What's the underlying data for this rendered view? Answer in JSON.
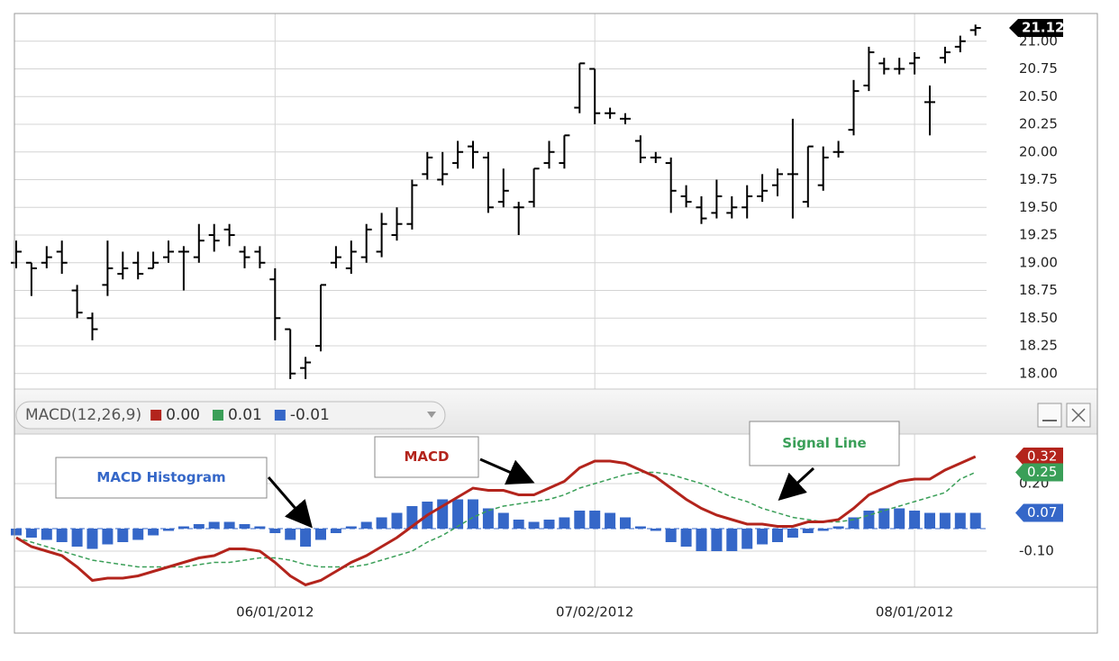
{
  "chart_data": [
    {
      "type": "ohlc",
      "color": "#000000",
      "grid": true,
      "ylim": [
        17.86,
        21.25
      ],
      "yticks": [
        {
          "value": 18,
          "label": "18.00"
        },
        {
          "value": 18.25,
          "label": "18.25"
        },
        {
          "value": 18.5,
          "label": "18.50"
        },
        {
          "value": 18.75,
          "label": "18.75"
        },
        {
          "value": 19,
          "label": "19.00"
        },
        {
          "value": 19.25,
          "label": "19.25"
        },
        {
          "value": 19.5,
          "label": "19.50"
        },
        {
          "value": 19.75,
          "label": "19.75"
        },
        {
          "value": 20,
          "label": "20.00"
        },
        {
          "value": 20.25,
          "label": "20.25"
        },
        {
          "value": 20.5,
          "label": "20.50"
        },
        {
          "value": 20.75,
          "label": "20.75"
        },
        {
          "value": 21,
          "label": "21.00"
        }
      ],
      "open": [
        19.0,
        19.0,
        19.0,
        19.1,
        18.75,
        18.5,
        18.8,
        18.9,
        19.0,
        18.95,
        19.05,
        19.1,
        19.05,
        19.25,
        19.3,
        19.1,
        19.1,
        18.85,
        18.4,
        18.05,
        18.25,
        19.0,
        18.95,
        19.05,
        19.1,
        19.25,
        19.35,
        19.8,
        19.75,
        19.9,
        20.05,
        19.95,
        19.55,
        19.5,
        19.55,
        19.9,
        19.9,
        20.4,
        20.75,
        20.35,
        20.3,
        20.1,
        19.95,
        19.9,
        19.6,
        19.5,
        19.45,
        19.45,
        19.5,
        19.6,
        19.7,
        19.8,
        19.55,
        19.7,
        20.0,
        20.2,
        20.6,
        20.8,
        20.75,
        20.8,
        20.45,
        20.85,
        20.95,
        21.1
      ],
      "high": [
        19.2,
        19.0,
        19.15,
        19.2,
        18.8,
        18.55,
        19.2,
        19.1,
        19.1,
        19.1,
        19.2,
        19.15,
        19.35,
        19.35,
        19.35,
        19.15,
        19.15,
        18.95,
        18.4,
        18.15,
        18.8,
        19.15,
        19.2,
        19.35,
        19.45,
        19.5,
        19.75,
        20.0,
        20.0,
        20.1,
        20.1,
        20.0,
        19.85,
        19.55,
        19.85,
        20.1,
        20.15,
        20.8,
        20.75,
        20.4,
        20.35,
        20.15,
        20.0,
        19.95,
        19.7,
        19.6,
        19.75,
        19.6,
        19.7,
        19.8,
        19.85,
        20.3,
        20.05,
        20.05,
        20.1,
        20.65,
        20.95,
        20.85,
        20.85,
        20.9,
        20.6,
        20.95,
        21.05,
        21.15
      ],
      "low": [
        18.95,
        18.7,
        18.95,
        18.9,
        18.5,
        18.3,
        18.7,
        18.85,
        18.85,
        18.95,
        19.0,
        18.75,
        19.0,
        19.1,
        19.15,
        18.95,
        18.95,
        18.3,
        17.95,
        17.95,
        18.2,
        18.95,
        18.9,
        19.0,
        19.05,
        19.2,
        19.3,
        19.75,
        19.7,
        19.85,
        19.85,
        19.45,
        19.5,
        19.25,
        19.5,
        19.85,
        19.85,
        20.35,
        20.25,
        20.3,
        20.25,
        19.9,
        19.9,
        19.45,
        19.5,
        19.35,
        19.4,
        19.4,
        19.4,
        19.55,
        19.6,
        19.4,
        19.5,
        19.65,
        19.95,
        20.15,
        20.55,
        20.7,
        20.7,
        20.7,
        20.15,
        20.8,
        20.9,
        21.05
      ],
      "close": [
        19.1,
        18.95,
        19.05,
        19.0,
        18.55,
        18.4,
        18.95,
        18.95,
        18.9,
        19.0,
        19.1,
        19.1,
        19.2,
        19.2,
        19.25,
        19.05,
        19.0,
        18.5,
        18.0,
        18.1,
        18.8,
        19.05,
        19.1,
        19.3,
        19.35,
        19.35,
        19.7,
        19.95,
        19.8,
        20.0,
        20.0,
        19.5,
        19.65,
        19.5,
        19.85,
        20.0,
        20.15,
        20.8,
        20.35,
        20.35,
        20.3,
        19.95,
        19.95,
        19.65,
        19.55,
        19.4,
        19.6,
        19.5,
        19.6,
        19.65,
        19.8,
        19.8,
        20.05,
        19.95,
        20.0,
        20.55,
        20.9,
        20.75,
        20.75,
        20.85,
        20.45,
        20.9,
        21.0,
        21.12
      ]
    },
    {
      "type": "macd",
      "title": "MACD(12,26,9)",
      "grid": true,
      "ylim": [
        -0.26,
        0.42
      ],
      "yticks": [
        {
          "value": 0.2,
          "label": "0.20"
        },
        {
          "value": -0.1,
          "label": "-0.10"
        }
      ],
      "categories": [
        null,
        null,
        null,
        null,
        null,
        null,
        null,
        null,
        null,
        null,
        null,
        null,
        null,
        null,
        null,
        null,
        null,
        "06/01/2012",
        null,
        null,
        null,
        null,
        null,
        null,
        null,
        null,
        null,
        null,
        null,
        null,
        null,
        null,
        null,
        null,
        null,
        null,
        null,
        null,
        "07/02/2012",
        null,
        null,
        null,
        null,
        null,
        null,
        null,
        null,
        null,
        null,
        null,
        null,
        null,
        null,
        null,
        null,
        null,
        null,
        null,
        null,
        "08/01/2012",
        null,
        null,
        null,
        null
      ],
      "series": [
        {
          "name": "MACD",
          "color": "#b3241c",
          "style": "solid",
          "header_value": {
            "value": 0,
            "label": "0.00"
          },
          "values": [
            -0.04,
            -0.08,
            -0.1,
            -0.12,
            -0.17,
            -0.23,
            -0.22,
            -0.22,
            -0.21,
            -0.19,
            -0.17,
            -0.15,
            -0.13,
            -0.12,
            -0.09,
            -0.09,
            -0.1,
            -0.15,
            -0.21,
            -0.25,
            -0.23,
            -0.19,
            -0.15,
            -0.12,
            -0.08,
            -0.04,
            0.01,
            0.06,
            0.1,
            0.14,
            0.18,
            0.17,
            0.17,
            0.15,
            0.15,
            0.18,
            0.21,
            0.27,
            0.3,
            0.3,
            0.29,
            0.26,
            0.23,
            0.18,
            0.13,
            0.09,
            0.06,
            0.04,
            0.02,
            0.02,
            0.01,
            0.01,
            0.03,
            0.03,
            0.04,
            0.09,
            0.15,
            0.18,
            0.21,
            0.22,
            0.22,
            0.26,
            0.29,
            0.32
          ]
        },
        {
          "name": "Signal Line",
          "color": "#3a9f58",
          "style": "dashed",
          "header_value": {
            "value": 0.01,
            "label": "0.01"
          },
          "values": [
            -0.04,
            -0.06,
            -0.08,
            -0.1,
            -0.12,
            -0.14,
            -0.15,
            -0.16,
            -0.17,
            -0.17,
            -0.17,
            -0.17,
            -0.16,
            -0.15,
            -0.15,
            -0.14,
            -0.13,
            -0.13,
            -0.14,
            -0.16,
            -0.17,
            -0.17,
            -0.17,
            -0.16,
            -0.14,
            -0.12,
            -0.1,
            -0.06,
            -0.03,
            0.01,
            0.05,
            0.08,
            0.1,
            0.11,
            0.12,
            0.13,
            0.15,
            0.18,
            0.2,
            0.22,
            0.24,
            0.25,
            0.25,
            0.24,
            0.22,
            0.2,
            0.17,
            0.14,
            0.12,
            0.09,
            0.07,
            0.05,
            0.04,
            0.03,
            0.03,
            0.04,
            0.06,
            0.08,
            0.1,
            0.12,
            0.14,
            0.16,
            0.22,
            0.25
          ]
        },
        {
          "name": "MACD Histogram",
          "color": "#3567c8",
          "style": "bar",
          "header_value": {
            "value": -0.01,
            "label": "-0.01"
          },
          "values": [
            -0.03,
            -0.04,
            -0.05,
            -0.06,
            -0.08,
            -0.09,
            -0.07,
            -0.06,
            -0.05,
            -0.03,
            -0.01,
            0.01,
            0.02,
            0.03,
            0.03,
            0.02,
            0.01,
            -0.02,
            -0.05,
            -0.08,
            -0.05,
            -0.02,
            0.01,
            0.03,
            0.05,
            0.07,
            0.1,
            0.12,
            0.13,
            0.13,
            0.13,
            0.09,
            0.07,
            0.04,
            0.03,
            0.04,
            0.05,
            0.08,
            0.08,
            0.07,
            0.05,
            0.01,
            -0.01,
            -0.06,
            -0.08,
            -0.1,
            -0.1,
            -0.1,
            -0.09,
            -0.07,
            -0.06,
            -0.04,
            -0.02,
            -0.01,
            0.01,
            0.05,
            0.08,
            0.09,
            0.09,
            0.08,
            0.07,
            0.07,
            0.07,
            0.07
          ]
        }
      ]
    }
  ]
}
